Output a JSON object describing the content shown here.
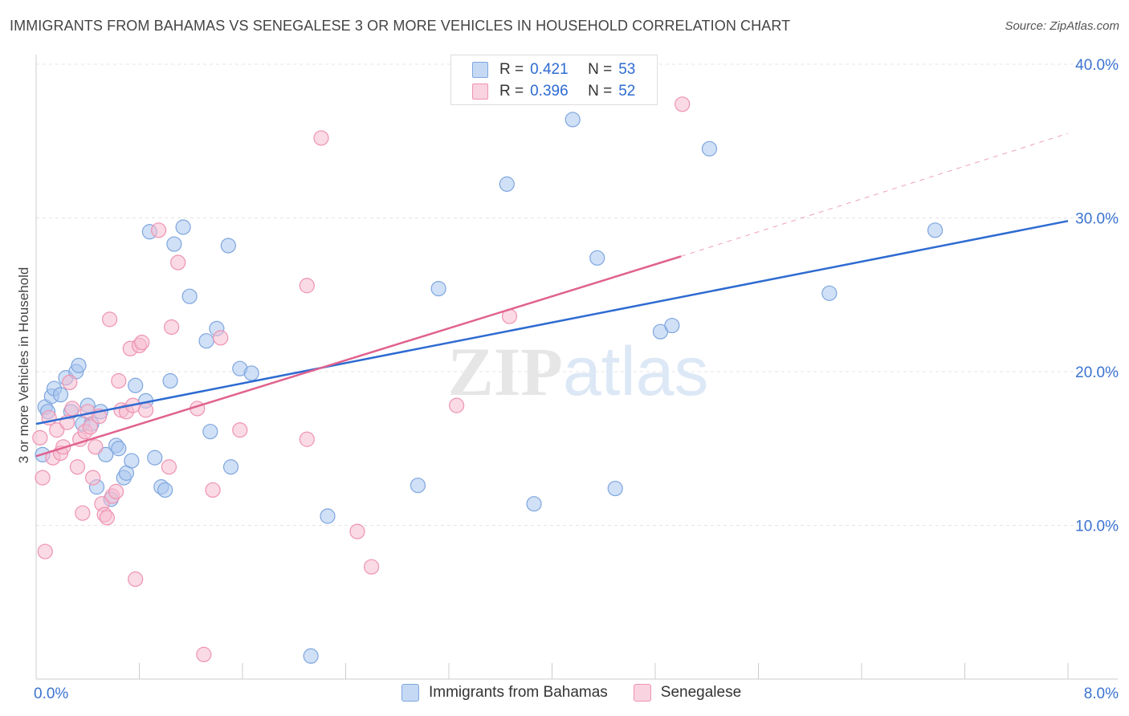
{
  "chart_data": {
    "type": "scatter",
    "title": "IMMIGRANTS FROM BAHAMAS VS SENEGALESE 3 OR MORE VEHICLES IN HOUSEHOLD CORRELATION CHART",
    "source": "Source: ZipAtlas.com",
    "ylabel": "3 or more Vehicles in Household",
    "xlabel": "",
    "xlim": [
      0.0,
      8.0
    ],
    "ylim": [
      0.0,
      40.0
    ],
    "x_tick_labels": [
      "0.0%",
      "8.0%"
    ],
    "y_ticks": [
      10,
      20,
      30,
      40
    ],
    "y_tick_labels": [
      "10.0%",
      "20.0%",
      "30.0%",
      "40.0%"
    ],
    "grid": true,
    "watermark": "ZIPatlas",
    "series": [
      {
        "name": "Immigrants from Bahamas",
        "color": "#a9c7ef",
        "edge": "#7ea6df",
        "line_color": "#2e6bd1",
        "R": "0.421",
        "N": "53",
        "trend": {
          "x": [
            0.0,
            8.0
          ],
          "y": [
            16.6,
            29.8
          ],
          "dashed_extension": false
        },
        "points": [
          [
            0.05,
            14.6
          ],
          [
            0.07,
            17.7
          ],
          [
            0.09,
            17.4
          ],
          [
            0.12,
            18.4
          ],
          [
            0.14,
            18.9
          ],
          [
            0.19,
            18.5
          ],
          [
            0.23,
            19.6
          ],
          [
            0.27,
            17.4
          ],
          [
            0.31,
            20.0
          ],
          [
            0.33,
            20.4
          ],
          [
            0.36,
            16.6
          ],
          [
            0.4,
            17.8
          ],
          [
            0.43,
            16.6
          ],
          [
            0.47,
            12.5
          ],
          [
            0.5,
            17.4
          ],
          [
            0.54,
            14.6
          ],
          [
            0.58,
            11.7
          ],
          [
            0.62,
            15.2
          ],
          [
            0.64,
            15.0
          ],
          [
            0.68,
            13.1
          ],
          [
            0.7,
            13.4
          ],
          [
            0.74,
            14.2
          ],
          [
            0.77,
            19.1
          ],
          [
            0.85,
            18.1
          ],
          [
            0.88,
            29.1
          ],
          [
            0.92,
            14.4
          ],
          [
            0.97,
            12.5
          ],
          [
            1.0,
            12.3
          ],
          [
            1.04,
            19.4
          ],
          [
            1.07,
            28.3
          ],
          [
            1.14,
            29.4
          ],
          [
            1.19,
            24.9
          ],
          [
            1.32,
            22.0
          ],
          [
            1.4,
            22.8
          ],
          [
            1.35,
            16.1
          ],
          [
            1.49,
            28.2
          ],
          [
            1.51,
            13.8
          ],
          [
            1.58,
            20.2
          ],
          [
            1.67,
            19.9
          ],
          [
            2.13,
            1.5
          ],
          [
            2.26,
            10.6
          ],
          [
            2.96,
            12.6
          ],
          [
            3.12,
            25.4
          ],
          [
            3.65,
            32.2
          ],
          [
            3.86,
            11.4
          ],
          [
            4.16,
            36.4
          ],
          [
            4.35,
            27.4
          ],
          [
            4.49,
            12.4
          ],
          [
            4.84,
            22.6
          ],
          [
            4.93,
            23.0
          ],
          [
            5.22,
            34.5
          ],
          [
            6.15,
            25.1
          ],
          [
            6.97,
            29.2
          ]
        ]
      },
      {
        "name": "Senegalese",
        "color": "#f6bcd0",
        "edge": "#ee93b1",
        "line_color": "#e0628f",
        "R": "0.396",
        "N": "52",
        "trend": {
          "x": [
            0.0,
            5.0
          ],
          "y": [
            14.5,
            27.5
          ],
          "dashed_extension": true,
          "extension_to": [
            8.0,
            35.5
          ]
        },
        "points": [
          [
            0.03,
            15.7
          ],
          [
            0.05,
            13.1
          ],
          [
            0.07,
            8.3
          ],
          [
            0.1,
            17.0
          ],
          [
            0.13,
            14.4
          ],
          [
            0.16,
            16.2
          ],
          [
            0.19,
            14.7
          ],
          [
            0.21,
            15.1
          ],
          [
            0.24,
            16.7
          ],
          [
            0.26,
            19.3
          ],
          [
            0.28,
            17.6
          ],
          [
            0.32,
            13.8
          ],
          [
            0.34,
            15.6
          ],
          [
            0.36,
            10.8
          ],
          [
            0.38,
            16.1
          ],
          [
            0.4,
            17.4
          ],
          [
            0.42,
            16.4
          ],
          [
            0.44,
            13.1
          ],
          [
            0.46,
            15.1
          ],
          [
            0.49,
            17.1
          ],
          [
            0.51,
            11.4
          ],
          [
            0.53,
            10.7
          ],
          [
            0.55,
            10.5
          ],
          [
            0.57,
            23.4
          ],
          [
            0.59,
            11.9
          ],
          [
            0.62,
            12.2
          ],
          [
            0.64,
            19.4
          ],
          [
            0.66,
            17.5
          ],
          [
            0.7,
            17.4
          ],
          [
            0.73,
            21.5
          ],
          [
            0.75,
            17.8
          ],
          [
            0.77,
            6.5
          ],
          [
            0.8,
            21.7
          ],
          [
            0.82,
            21.9
          ],
          [
            0.85,
            17.5
          ],
          [
            0.95,
            29.2
          ],
          [
            1.03,
            13.8
          ],
          [
            1.05,
            22.9
          ],
          [
            1.1,
            27.1
          ],
          [
            1.25,
            17.6
          ],
          [
            1.3,
            1.6
          ],
          [
            1.37,
            12.3
          ],
          [
            1.43,
            22.2
          ],
          [
            1.58,
            16.2
          ],
          [
            2.1,
            25.6
          ],
          [
            2.1,
            15.6
          ],
          [
            2.21,
            35.2
          ],
          [
            2.49,
            9.6
          ],
          [
            2.6,
            7.3
          ],
          [
            3.26,
            17.8
          ],
          [
            3.67,
            23.6
          ],
          [
            5.01,
            37.4
          ]
        ]
      }
    ],
    "legend_bottom": [
      "Immigrants from Bahamas",
      "Senegalese"
    ],
    "legend_top_labels": {
      "r": "R =",
      "n": "N ="
    }
  }
}
